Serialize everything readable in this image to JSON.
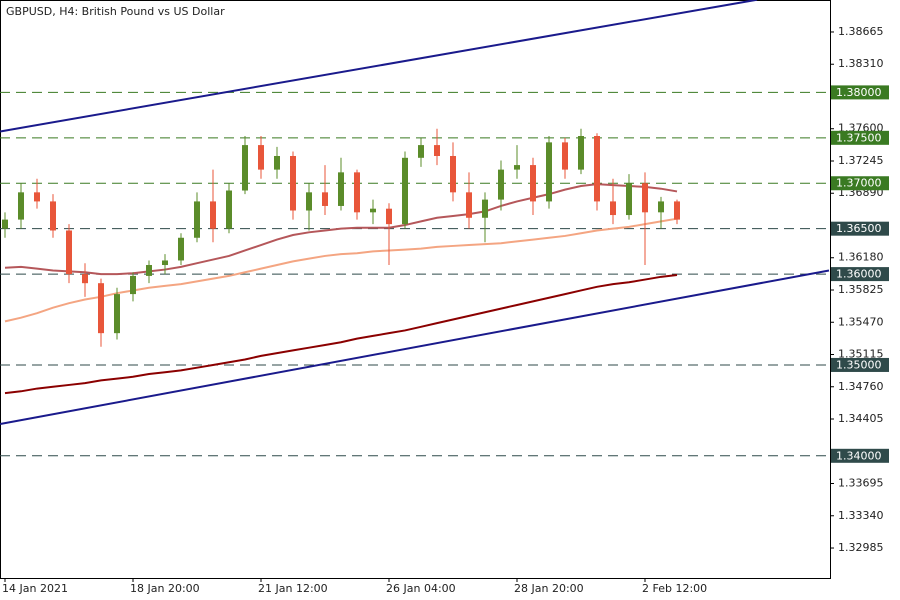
{
  "chart_data": {
    "type": "candlestick",
    "title": "GBPUSD, H4:  British Pound vs US Dollar",
    "categories": [
      "14 Jan 2021",
      null,
      null,
      null,
      null,
      null,
      null,
      null,
      "18 Jan 20:00",
      null,
      null,
      null,
      null,
      null,
      null,
      null,
      "21 Jan 12:00",
      null,
      null,
      null,
      null,
      null,
      null,
      null,
      "26 Jan 04:00",
      null,
      null,
      null,
      null,
      null,
      null,
      null,
      "28 Jan 20:00",
      null,
      null,
      null,
      null,
      null,
      null,
      null,
      "2 Feb 12:00",
      null,
      null
    ],
    "open": [
      1.365,
      1.366,
      1.369,
      1.368,
      1.3648,
      1.36,
      1.359,
      1.3535,
      1.3578,
      1.3598,
      1.361,
      1.3615,
      1.364,
      1.368,
      1.365,
      1.3692,
      1.3742,
      1.3715,
      1.373,
      1.367,
      1.369,
      1.3675,
      1.3712,
      1.3668,
      1.3672,
      1.3655,
      1.3728,
      1.3742,
      1.373,
      1.369,
      1.3662,
      1.3682,
      1.3715,
      1.372,
      1.368,
      1.3745,
      1.3715,
      1.3752,
      1.368,
      1.3665,
      1.37,
      1.3668,
      1.368
    ],
    "high": [
      1.3668,
      1.37,
      1.3705,
      1.3688,
      1.3655,
      1.3612,
      1.3595,
      1.3585,
      1.3602,
      1.3615,
      1.3622,
      1.3645,
      1.369,
      1.3715,
      1.37,
      1.3752,
      1.3752,
      1.374,
      1.3735,
      1.37,
      1.372,
      1.3728,
      1.3715,
      1.3682,
      1.3678,
      1.3735,
      1.375,
      1.376,
      1.3745,
      1.3712,
      1.369,
      1.3725,
      1.3742,
      1.3728,
      1.3752,
      1.375,
      1.376,
      1.3755,
      1.3705,
      1.371,
      1.3712,
      1.3685,
      1.3682
    ],
    "low": [
      1.364,
      1.365,
      1.3672,
      1.364,
      1.359,
      1.3575,
      1.352,
      1.3528,
      1.357,
      1.359,
      1.36,
      1.361,
      1.3635,
      1.3635,
      1.3645,
      1.3688,
      1.3705,
      1.3705,
      1.366,
      1.3648,
      1.3665,
      1.367,
      1.366,
      1.3655,
      1.361,
      1.365,
      1.3718,
      1.372,
      1.368,
      1.365,
      1.3635,
      1.367,
      1.3705,
      1.3665,
      1.3672,
      1.3705,
      1.371,
      1.367,
      1.3655,
      1.366,
      1.361,
      1.365,
      1.3655
    ],
    "close": [
      1.366,
      1.369,
      1.368,
      1.3648,
      1.36,
      1.359,
      1.3535,
      1.3578,
      1.3598,
      1.361,
      1.3615,
      1.364,
      1.368,
      1.365,
      1.3692,
      1.3742,
      1.3715,
      1.373,
      1.367,
      1.369,
      1.3675,
      1.3712,
      1.3668,
      1.3672,
      1.3655,
      1.3728,
      1.3742,
      1.373,
      1.369,
      1.3662,
      1.3682,
      1.3715,
      1.372,
      1.368,
      1.3745,
      1.3715,
      1.3752,
      1.368,
      1.3665,
      1.37,
      1.3668,
      1.368,
      1.366
    ],
    "up_color": "#5b8c2a",
    "down_color": "#e8563a",
    "lines": [
      {
        "color": "#b5575a",
        "values": [
          1.3607,
          1.3608,
          1.3606,
          1.3604,
          1.3603,
          1.3602,
          1.36,
          1.36,
          1.3601,
          1.3603,
          1.3605,
          1.3608,
          1.3612,
          1.3616,
          1.362,
          1.3626,
          1.3632,
          1.3638,
          1.3643,
          1.3646,
          1.3648,
          1.365,
          1.3651,
          1.3651,
          1.3651,
          1.3654,
          1.3658,
          1.3662,
          1.3664,
          1.3666,
          1.3669,
          1.3675,
          1.368,
          1.3684,
          1.3688,
          1.3693,
          1.3697,
          1.3699,
          1.3698,
          1.3697,
          1.3696,
          1.3694,
          1.3691
        ]
      },
      {
        "color": "#f4a582",
        "values": [
          1.3548,
          1.3552,
          1.3557,
          1.3563,
          1.3568,
          1.3572,
          1.3575,
          1.3579,
          1.3582,
          1.3585,
          1.3587,
          1.3589,
          1.3592,
          1.3595,
          1.3598,
          1.3602,
          1.3606,
          1.361,
          1.3614,
          1.3617,
          1.362,
          1.3622,
          1.3623,
          1.3625,
          1.3626,
          1.3627,
          1.3628,
          1.363,
          1.3631,
          1.3632,
          1.3633,
          1.3634,
          1.3636,
          1.3638,
          1.364,
          1.3642,
          1.3645,
          1.3648,
          1.365,
          1.3652,
          1.3655,
          1.3658,
          1.3661
        ]
      },
      {
        "color": "#8b0000",
        "values": [
          1.3469,
          1.3471,
          1.3474,
          1.3476,
          1.3478,
          1.348,
          1.3483,
          1.3485,
          1.3487,
          1.349,
          1.3492,
          1.3494,
          1.3497,
          1.35,
          1.3503,
          1.3506,
          1.351,
          1.3513,
          1.3516,
          1.3519,
          1.3522,
          1.3525,
          1.3529,
          1.3532,
          1.3535,
          1.3538,
          1.3542,
          1.3546,
          1.355,
          1.3554,
          1.3558,
          1.3562,
          1.3566,
          1.357,
          1.3574,
          1.3578,
          1.3582,
          1.3586,
          1.3589,
          1.3591,
          1.3594,
          1.3597,
          1.3599
        ]
      }
    ],
    "trendlines": [
      {
        "color": "#1a1a8c",
        "from": [
          -0.3,
          1.3757
        ],
        "to": [
          47,
          1.3902
        ]
      },
      {
        "color": "#1a1a8c",
        "from": [
          -0.3,
          1.3435
        ],
        "to": [
          51.5,
          1.3604
        ]
      }
    ],
    "levels": [
      {
        "value": 1.38,
        "label": "1.38000",
        "color": "#3a7a22"
      },
      {
        "value": 1.375,
        "label": "1.37500",
        "color": "#3a7a22"
      },
      {
        "value": 1.37,
        "label": "1.37000",
        "color": "#3a7a22"
      },
      {
        "value": 1.365,
        "label": "1.36500",
        "color": "#2f4a4a"
      },
      {
        "value": 1.36,
        "label": "1.36000",
        "color": "#2f4a4a"
      },
      {
        "value": 1.35,
        "label": "1.35000",
        "color": "#2f4a4a"
      },
      {
        "value": 1.34,
        "label": "1.34000",
        "color": "#2f4a4a"
      }
    ],
    "ylim": [
      1.32655,
      1.39017
    ],
    "yticks": [
      {
        "value": 1.38665,
        "label": "1.38665"
      },
      {
        "value": 1.3831,
        "label": "1.38310"
      },
      {
        "value": 1.376,
        "label": "1.37600"
      },
      {
        "value": 1.37245,
        "label": "1.37245"
      },
      {
        "value": 1.3689,
        "label": "1.36890"
      },
      {
        "value": 1.3618,
        "label": "1.36180"
      },
      {
        "value": 1.35825,
        "label": "1.35825"
      },
      {
        "value": 1.3547,
        "label": "1.35470"
      },
      {
        "value": 1.35115,
        "label": "1.35115"
      },
      {
        "value": 1.3476,
        "label": "1.34760"
      },
      {
        "value": 1.34405,
        "label": "1.34405"
      },
      {
        "value": 1.33695,
        "label": "1.33695"
      },
      {
        "value": 1.3334,
        "label": "1.33340"
      },
      {
        "value": 1.32985,
        "label": "1.32985"
      }
    ]
  }
}
